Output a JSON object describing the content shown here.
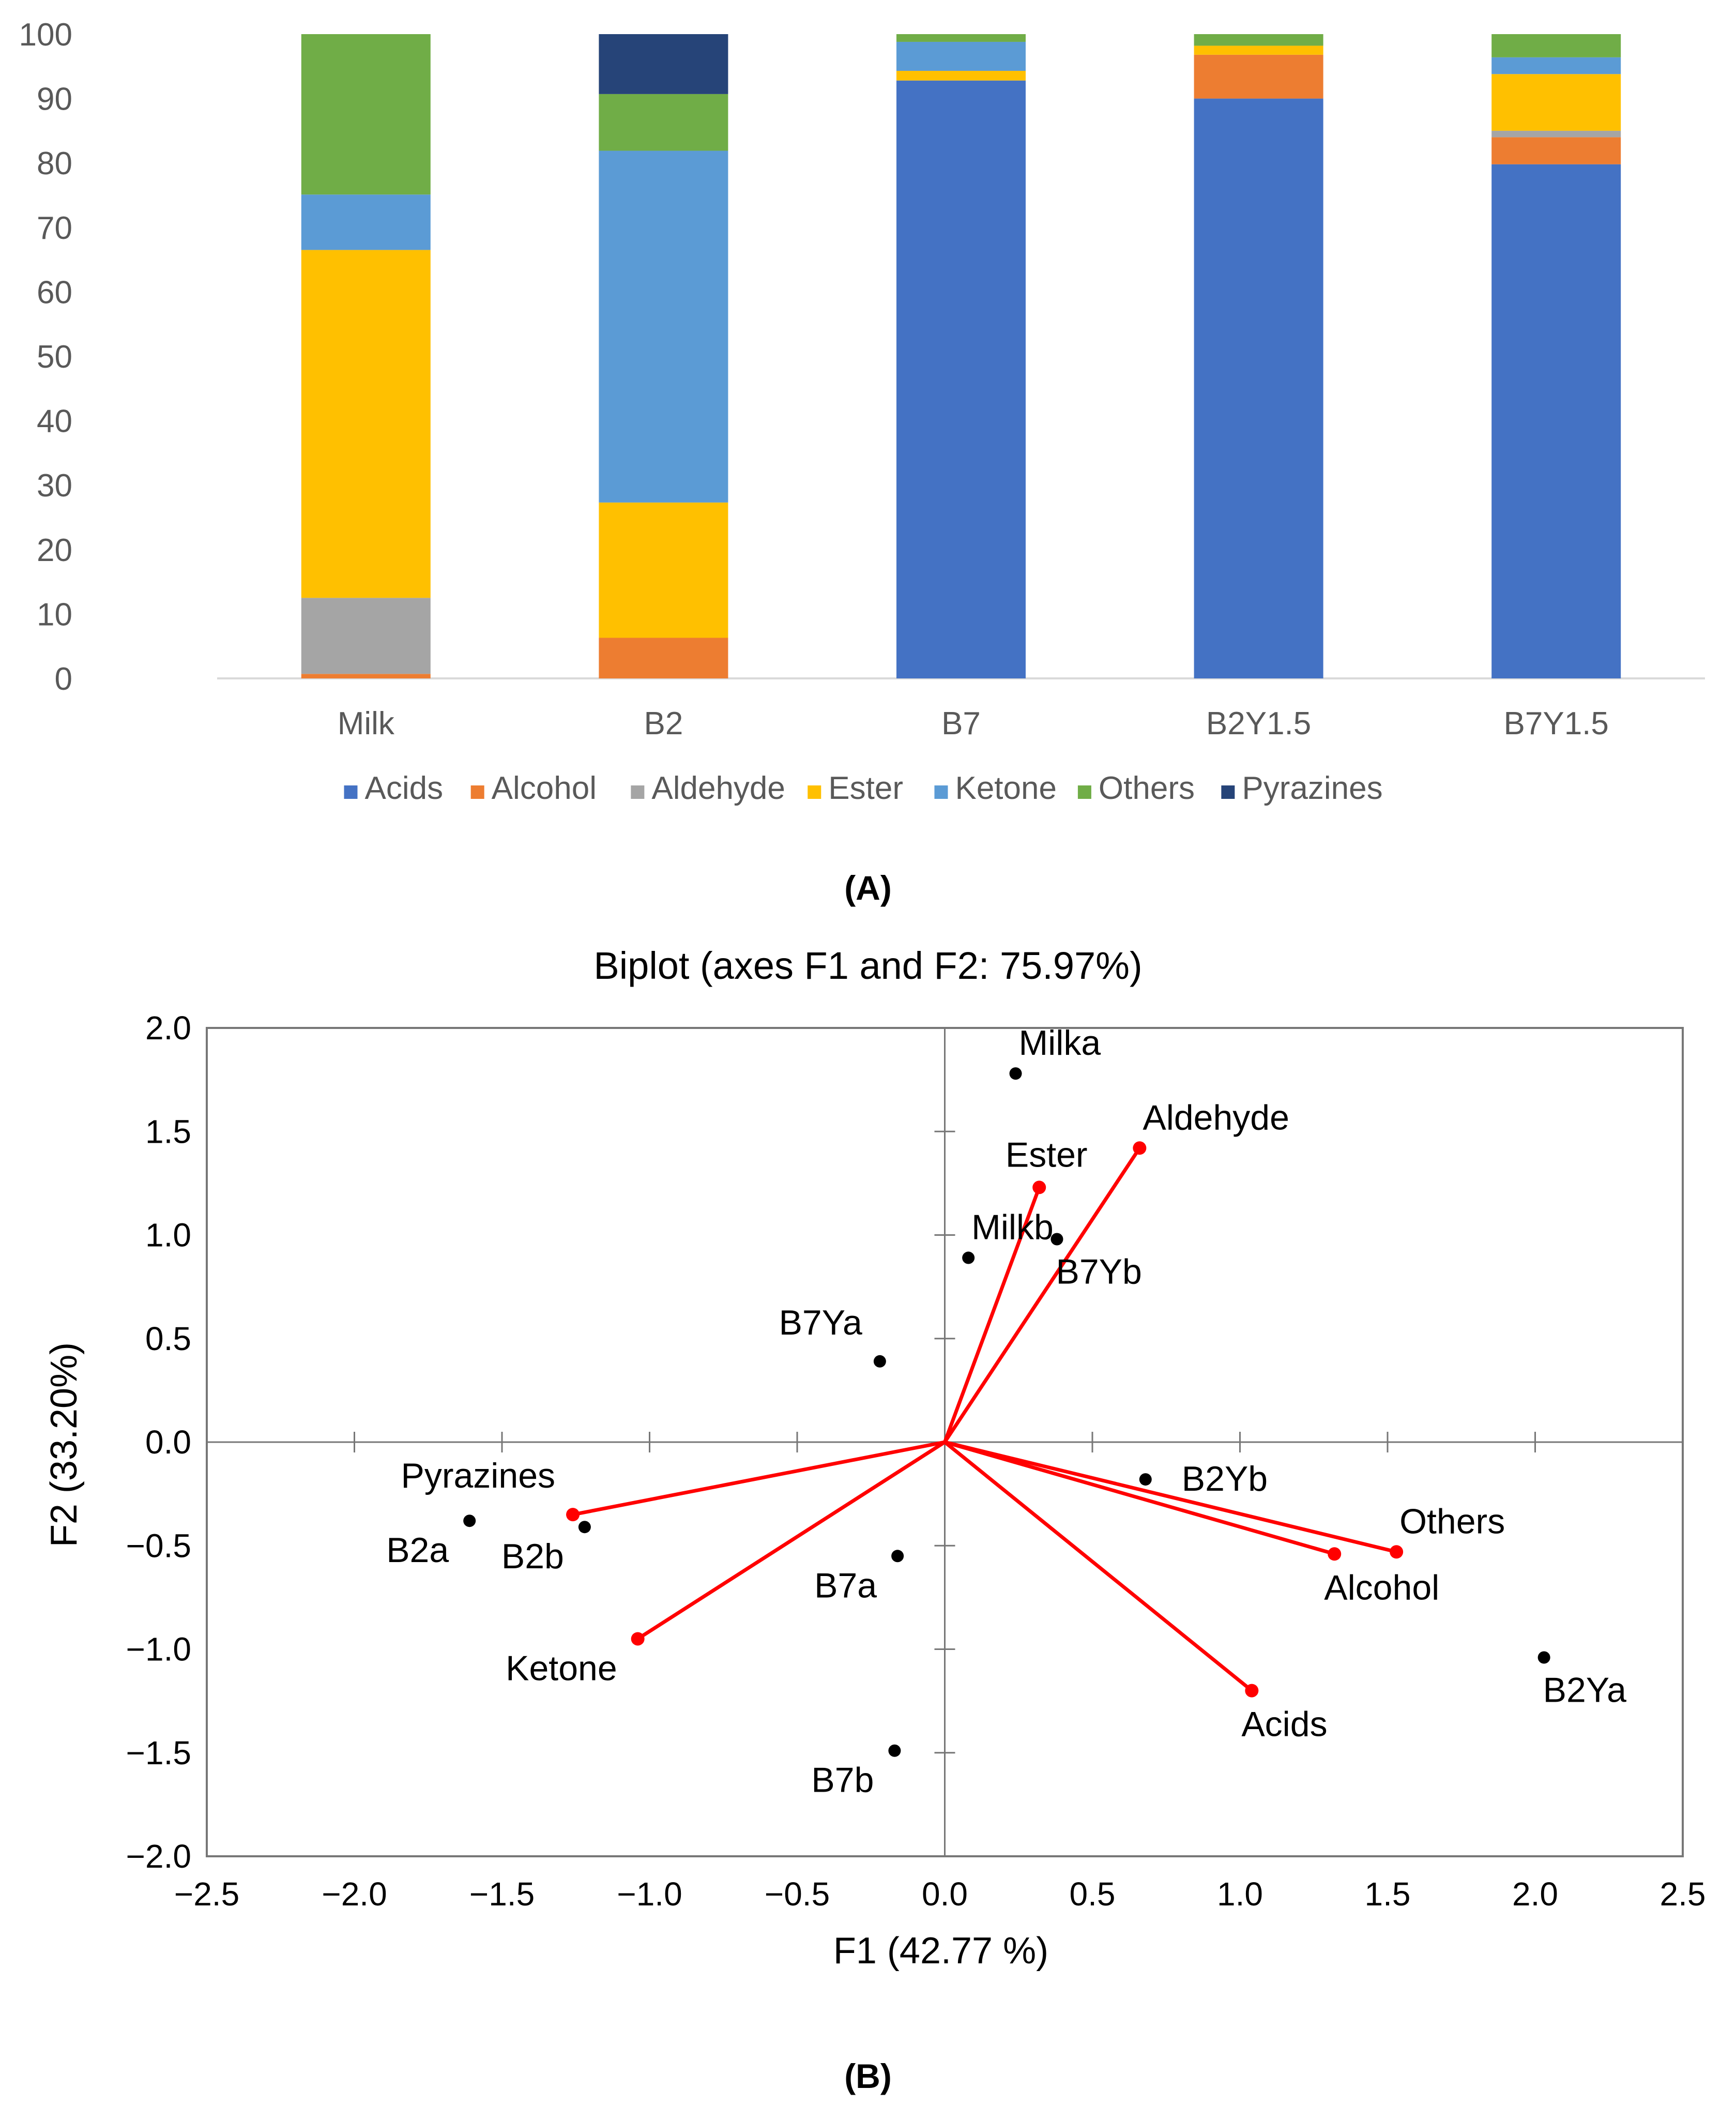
{
  "chart_data": [
    {
      "type": "bar",
      "stacked": true,
      "title": "",
      "xlabel": "",
      "ylabel": "",
      "panel_label": "(A)",
      "ylim": [
        0,
        100
      ],
      "yticks": [
        "0",
        "10",
        "20",
        "30",
        "40",
        "50",
        "60",
        "70",
        "80",
        "90",
        "100"
      ],
      "categories": [
        "Milk",
        "B2",
        "B7",
        "B2Y1.5",
        "B7Y1.5"
      ],
      "legend_position": "bottom",
      "series": [
        {
          "name": "Acids",
          "color": "#4472C4",
          "values": [
            0,
            0,
            92.8,
            90.0,
            79.8
          ]
        },
        {
          "name": "Alcohol",
          "color": "#ED7D31",
          "values": [
            0.7,
            6.3,
            0,
            6.8,
            4.2
          ]
        },
        {
          "name": "Aldehyde",
          "color": "#A5A5A5",
          "values": [
            11.8,
            0,
            0,
            0,
            1.0
          ]
        },
        {
          "name": "Ester",
          "color": "#FFC000",
          "values": [
            54.0,
            21.0,
            1.5,
            1.4,
            8.8
          ]
        },
        {
          "name": "Ketone",
          "color": "#5B9BD5",
          "values": [
            8.6,
            54.6,
            4.5,
            0,
            2.6
          ]
        },
        {
          "name": "Others",
          "color": "#70AD47",
          "values": [
            24.9,
            8.8,
            1.2,
            1.8,
            3.6
          ]
        },
        {
          "name": "Pyrazines",
          "color": "#264478",
          "values": [
            0,
            9.3,
            0,
            0,
            0
          ]
        }
      ]
    },
    {
      "type": "scatter",
      "title": "Biplot (axes F1 and F2: 75.97%)",
      "xlabel": "F1 (42.77 %)",
      "ylabel": "F2 (33.20%)",
      "panel_label": "(B)",
      "xlim": [
        -2.5,
        2.5
      ],
      "ylim": [
        -2.0,
        2.0
      ],
      "xticks": [
        "−2.5",
        "−2.0",
        "−1.5",
        "−1.0",
        "−0.5",
        "0.0",
        "0.5",
        "1.0",
        "1.5",
        "2.0",
        "2.5"
      ],
      "yticks": [
        "−2.0",
        "−1.5",
        "−1.0",
        "−0.5",
        "0.0",
        "0.5",
        "1.0",
        "1.5",
        "2.0"
      ],
      "observations_color": "#000000",
      "variables_color": "#FF0000",
      "observations": [
        {
          "label": "Milka",
          "x": 0.24,
          "y": 1.78,
          "label_anchor": "above-right"
        },
        {
          "label": "Milkb",
          "x": 0.08,
          "y": 0.89,
          "label_anchor": "above-right"
        },
        {
          "label": "B7Yb",
          "x": 0.38,
          "y": 0.98,
          "label_anchor": "below-right"
        },
        {
          "label": "B7Ya",
          "x": -0.22,
          "y": 0.39,
          "label_anchor": "above-left"
        },
        {
          "label": "B2Yb",
          "x": 0.68,
          "y": -0.18,
          "label_anchor": "right"
        },
        {
          "label": "B2a",
          "x": -1.61,
          "y": -0.38,
          "label_anchor": "below-left"
        },
        {
          "label": "B2b",
          "x": -1.22,
          "y": -0.41,
          "label_anchor": "below-left"
        },
        {
          "label": "B7a",
          "x": -0.16,
          "y": -0.55,
          "label_anchor": "below-left"
        },
        {
          "label": "B7b",
          "x": -0.17,
          "y": -1.49,
          "label_anchor": "below-left"
        },
        {
          "label": "B2Ya",
          "x": 2.03,
          "y": -1.04,
          "label_anchor": "below-right"
        }
      ],
      "variables": [
        {
          "label": "Aldehyde",
          "x": 0.66,
          "y": 1.42,
          "label_anchor": "above-right"
        },
        {
          "label": "Ester",
          "x": 0.32,
          "y": 1.23,
          "label_anchor": "above"
        },
        {
          "label": "Pyrazines",
          "x": -1.26,
          "y": -0.35,
          "label_anchor": "above-left"
        },
        {
          "label": "Ketone",
          "x": -1.04,
          "y": -0.95,
          "label_anchor": "below-left"
        },
        {
          "label": "Others",
          "x": 1.53,
          "y": -0.53,
          "label_anchor": "above-right"
        },
        {
          "label": "Alcohol",
          "x": 1.32,
          "y": -0.54,
          "label_anchor": "below"
        },
        {
          "label": "Acids",
          "x": 1.04,
          "y": -1.2,
          "label_anchor": "below"
        }
      ]
    }
  ]
}
